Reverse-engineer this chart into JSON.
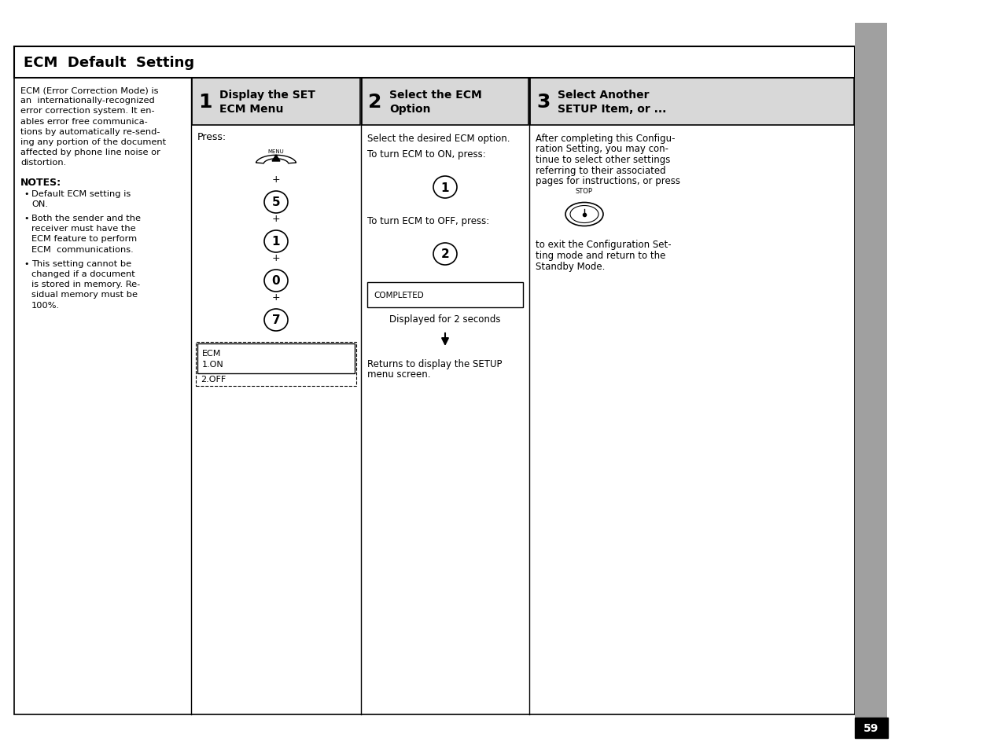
{
  "title": "ECM  Default  Setting",
  "bg_color": "#ffffff",
  "page_number": "59",
  "left_text": [
    "ECM (Error Correction Mode) is",
    "an  internationally-recognized",
    "error correction system. It en-",
    "ables error free communica-",
    "tions by automatically re-send-",
    "ing any portion of the document",
    "affected by phone line noise or",
    "distortion."
  ],
  "notes_title": "NOTES:",
  "notes": [
    [
      "Default ECM setting is",
      "ON."
    ],
    [
      "Both the sender and the",
      "receiver must have the",
      "ECM feature to perform",
      "ECM  communications."
    ],
    [
      "This setting cannot be",
      "changed if a document",
      "is stored in memory. Re-",
      "sidual memory must be",
      "100%."
    ]
  ],
  "step1_num": "1",
  "step1_title_line1": "Display the SET",
  "step1_title_line2": "ECM Menu",
  "step2_num": "2",
  "step2_title_line1": "Select the ECM",
  "step2_title_line2": "Option",
  "step3_num": "3",
  "step3_title_line1": "Select Another",
  "step3_title_line2": "SETUP Item, or ...",
  "step1_press": "Press:",
  "step1_display_lines": [
    "ECM",
    "1.ON"
  ],
  "step1_display_dashed": "2.OFF",
  "step2_text1": "Select the desired ECM option.",
  "step2_text2": "To turn ECM to ON, press:",
  "step2_key1": "1",
  "step2_text3": "To turn ECM to OFF, press:",
  "step2_key2": "2",
  "step2_completed": "COMPLETED",
  "step2_caption": "Displayed for 2 seconds",
  "step2_return_line1": "Returns to display the SETUP",
  "step2_return_line2": "menu screen.",
  "step3_text": [
    "After completing this Configu-",
    "ration Setting, you may con-",
    "tinue to select other settings",
    "referring to their associated",
    "pages for instructions, or press"
  ],
  "step3_stop_label": "STOP",
  "step3_text2": [
    "to exit the Configuration Set-",
    "ting mode and return to the",
    "Standby Mode."
  ],
  "sidebar_color": "#a0a0a0",
  "header_bg": "#d8d8d8"
}
